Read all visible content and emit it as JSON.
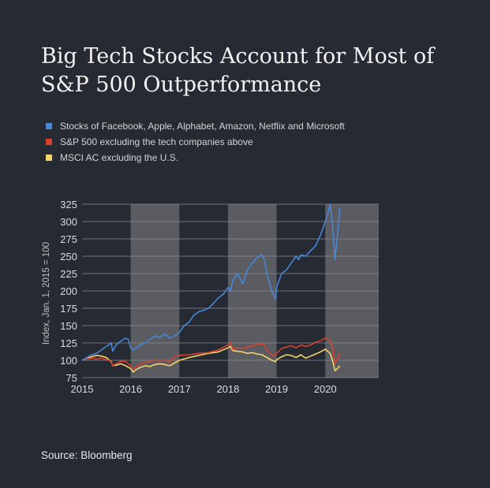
{
  "title": "Big Tech Stocks Account for Most of S&P 500 Outperformance",
  "source": "Source: Bloomberg",
  "colors": {
    "background": "#262a33",
    "shade": "#5a5c62",
    "grid": "#8a8c90",
    "tech": "#4a86d8",
    "sp": "#d9402e",
    "msci": "#f2d56a"
  },
  "chart_data": {
    "type": "line",
    "title": "",
    "xlabel": "",
    "ylabel": "Index, Jan. 1, 2015 = 100",
    "xlim": [
      2015,
      2021.1
    ],
    "ylim": [
      75,
      325
    ],
    "yticks": [
      75,
      100,
      125,
      150,
      175,
      200,
      225,
      250,
      275,
      300,
      325
    ],
    "xticks": [
      2015,
      2016,
      2017,
      2018,
      2019,
      2020
    ],
    "shaded_years": [
      [
        2016,
        2017
      ],
      [
        2018,
        2019
      ],
      [
        2020,
        2021.1
      ]
    ],
    "legend_position": "top-left",
    "series": [
      {
        "name": "Stocks of Facebook, Apple, Alphabet, Amazon, Netflix and Microsoft",
        "color": "#4a86d8",
        "x": [
          2015.0,
          2015.1,
          2015.2,
          2015.3,
          2015.4,
          2015.5,
          2015.6,
          2015.63,
          2015.7,
          2015.8,
          2015.9,
          2015.95,
          2016.0,
          2016.05,
          2016.1,
          2016.2,
          2016.3,
          2016.4,
          2016.5,
          2016.6,
          2016.7,
          2016.8,
          2016.9,
          2017.0,
          2017.1,
          2017.2,
          2017.3,
          2017.4,
          2017.5,
          2017.6,
          2017.7,
          2017.8,
          2017.9,
          2018.0,
          2018.05,
          2018.1,
          2018.2,
          2018.3,
          2018.4,
          2018.5,
          2018.6,
          2018.7,
          2018.75,
          2018.8,
          2018.9,
          2018.98,
          2019.0,
          2019.1,
          2019.2,
          2019.3,
          2019.4,
          2019.45,
          2019.5,
          2019.6,
          2019.7,
          2019.8,
          2019.9,
          2020.0,
          2020.05,
          2020.1,
          2020.15,
          2020.2,
          2020.25,
          2020.3
        ],
        "values": [
          100,
          104,
          108,
          110,
          115,
          120,
          125,
          113,
          122,
          128,
          132,
          130,
          118,
          115,
          117,
          122,
          125,
          130,
          135,
          133,
          138,
          132,
          135,
          140,
          150,
          155,
          165,
          170,
          172,
          175,
          182,
          190,
          195,
          205,
          200,
          215,
          225,
          210,
          230,
          240,
          248,
          252,
          245,
          225,
          200,
          188,
          205,
          225,
          230,
          240,
          250,
          245,
          252,
          250,
          258,
          265,
          280,
          300,
          310,
          325,
          295,
          245,
          280,
          320
        ]
      },
      {
        "name": "S&P 500 excluding the tech companies above",
        "color": "#d9402e",
        "x": [
          2015.0,
          2015.1,
          2015.2,
          2015.3,
          2015.4,
          2015.5,
          2015.6,
          2015.63,
          2015.7,
          2015.8,
          2015.9,
          2016.0,
          2016.05,
          2016.1,
          2016.2,
          2016.3,
          2016.4,
          2016.5,
          2016.6,
          2016.7,
          2016.8,
          2016.9,
          2017.0,
          2017.2,
          2017.4,
          2017.6,
          2017.8,
          2018.0,
          2018.05,
          2018.1,
          2018.2,
          2018.3,
          2018.4,
          2018.5,
          2018.6,
          2018.7,
          2018.75,
          2018.8,
          2018.9,
          2018.98,
          2019.0,
          2019.1,
          2019.2,
          2019.3,
          2019.4,
          2019.5,
          2019.6,
          2019.7,
          2019.8,
          2019.9,
          2020.0,
          2020.05,
          2020.1,
          2020.15,
          2020.2,
          2020.25,
          2020.3
        ],
        "values": [
          100,
          102,
          103,
          102,
          103,
          101,
          99,
          92,
          95,
          99,
          98,
          92,
          88,
          90,
          95,
          97,
          98,
          100,
          99,
          100,
          98,
          105,
          107,
          108,
          110,
          111,
          115,
          122,
          126,
          116,
          118,
          117,
          119,
          121,
          123,
          124,
          122,
          114,
          108,
          106,
          110,
          117,
          119,
          121,
          118,
          122,
          120,
          122,
          126,
          128,
          132,
          130,
          128,
          118,
          95,
          102,
          110
        ]
      },
      {
        "name": "MSCI AC excluding the U.S.",
        "color": "#f2d56a",
        "x": [
          2015.0,
          2015.1,
          2015.2,
          2015.3,
          2015.4,
          2015.5,
          2015.6,
          2015.63,
          2015.7,
          2015.8,
          2015.9,
          2016.0,
          2016.05,
          2016.1,
          2016.2,
          2016.3,
          2016.4,
          2016.5,
          2016.6,
          2016.7,
          2016.8,
          2016.9,
          2017.0,
          2017.2,
          2017.4,
          2017.6,
          2017.8,
          2018.0,
          2018.05,
          2018.1,
          2018.2,
          2018.3,
          2018.4,
          2018.5,
          2018.6,
          2018.7,
          2018.8,
          2018.9,
          2018.98,
          2019.0,
          2019.1,
          2019.2,
          2019.3,
          2019.4,
          2019.5,
          2019.6,
          2019.7,
          2019.8,
          2019.9,
          2020.0,
          2020.05,
          2020.1,
          2020.15,
          2020.2,
          2020.25,
          2020.3
        ],
        "values": [
          100,
          103,
          105,
          107,
          106,
          104,
          98,
          92,
          93,
          95,
          92,
          88,
          83,
          86,
          90,
          92,
          91,
          94,
          95,
          94,
          92,
          96,
          100,
          104,
          107,
          110,
          112,
          118,
          120,
          114,
          113,
          112,
          110,
          111,
          109,
          108,
          104,
          100,
          98,
          101,
          105,
          108,
          107,
          104,
          108,
          103,
          106,
          109,
          112,
          116,
          113,
          110,
          100,
          85,
          88,
          92
        ]
      }
    ]
  }
}
